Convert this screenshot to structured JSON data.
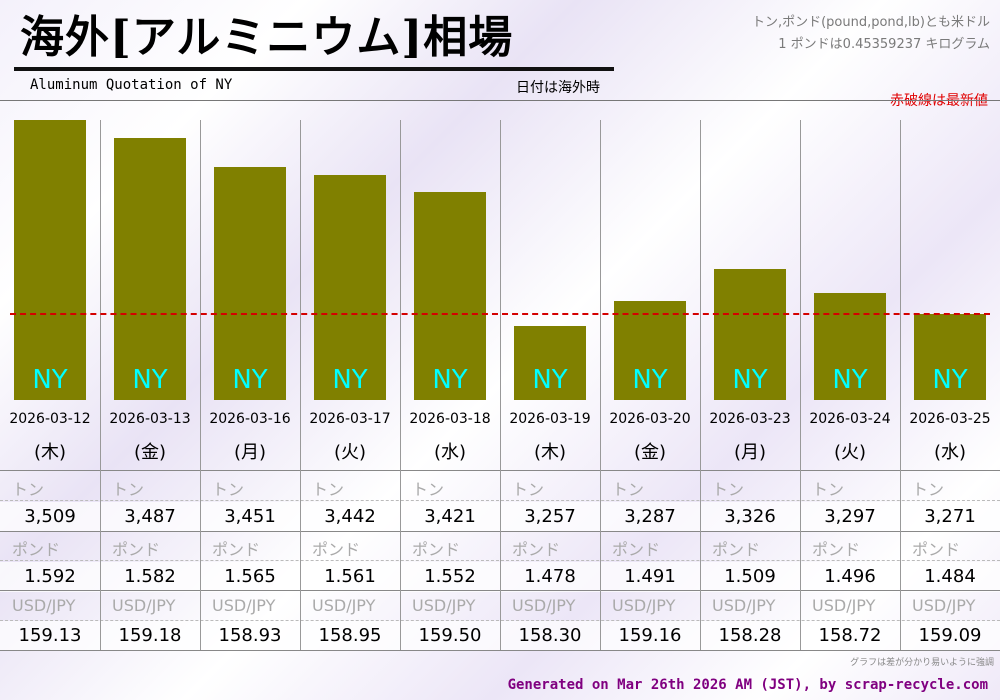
{
  "header": {
    "title": "海外[アルミニウム]相場",
    "subtitle": "Aluminum Quotation of NY",
    "date_note": "日付は海外時",
    "unit_note_line1": "トン,ポンド(pound,pond,lb)とも米ドル",
    "unit_note_line2": "1 ポンドは0.45359237 キログラム",
    "latest_note": "赤破線は最新値"
  },
  "colors": {
    "bar": "#808000",
    "bar_label": "#00ffff",
    "latest_line": "#d40000",
    "footer": "#800080"
  },
  "chart_data": {
    "type": "bar",
    "bar_label": "NY",
    "categories": [
      "2026-03-12",
      "2026-03-13",
      "2026-03-16",
      "2026-03-17",
      "2026-03-18",
      "2026-03-19",
      "2026-03-20",
      "2026-03-23",
      "2026-03-24",
      "2026-03-25"
    ],
    "weekdays": [
      "(木)",
      "(金)",
      "(月)",
      "(火)",
      "(水)",
      "(木)",
      "(金)",
      "(月)",
      "(火)",
      "(水)"
    ],
    "values": [
      3509,
      3487,
      3451,
      3442,
      3421,
      3257,
      3287,
      3326,
      3297,
      3271
    ],
    "display_values": [
      "3,509",
      "3,487",
      "3,451",
      "3,442",
      "3,421",
      "3,257",
      "3,287",
      "3,326",
      "3,297",
      "3,271"
    ],
    "latest_value": 3271,
    "latest_line": "dashed red",
    "grid": false
  },
  "table": {
    "ton_label": "トン",
    "pound_label": "ポンド",
    "usdjpy_label": "USD/JPY",
    "pound_values": [
      "1.592",
      "1.582",
      "1.565",
      "1.561",
      "1.552",
      "1.478",
      "1.491",
      "1.509",
      "1.496",
      "1.484"
    ],
    "usdjpy_values": [
      "159.13",
      "159.18",
      "158.93",
      "158.95",
      "159.50",
      "158.30",
      "159.16",
      "158.28",
      "158.72",
      "159.09"
    ]
  },
  "footnote": "グラフは差が分かり易いように強調",
  "footer": "Generated on Mar 26th 2026 AM (JST), by scrap-recycle.com"
}
